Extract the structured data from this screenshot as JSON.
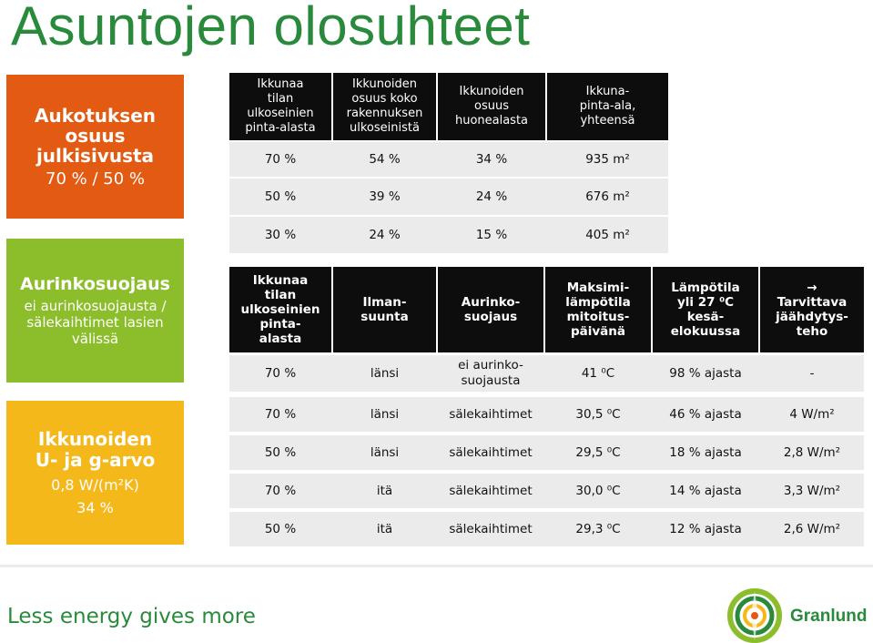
{
  "title": "Asuntojen olosuhteet",
  "side": {
    "orange": {
      "line1": "Aukotuksen",
      "line2": "osuus",
      "line3": "julkisivusta",
      "sub": "70 % / 50 %"
    },
    "green": {
      "heading": "Aurinkosuojaus",
      "line1": "ei aurinkosuojausta /",
      "line2": "sälekaihtimet lasien",
      "line3": "välissä"
    },
    "yellow": {
      "line1": "Ikkunoiden",
      "line2": "U- ja g-arvo",
      "sub1": "0,8 W/(m²K)",
      "sub2": "34 %"
    }
  },
  "table1": {
    "headers": [
      [
        "Ikkunaa",
        "tilan",
        "ulkoseinien",
        "pinta-alasta"
      ],
      [
        "Ikkunoiden",
        "osuus koko",
        "rakennuksen",
        "ulkoseinistä"
      ],
      [
        "Ikkunoiden",
        "osuus",
        "huonealasta"
      ],
      [
        "Ikkuna-",
        "pinta-ala,",
        "yhteensä"
      ]
    ],
    "rows": [
      [
        "70 %",
        "54 %",
        "34 %",
        "935 m²"
      ],
      [
        "50 %",
        "39 %",
        "24 %",
        "676 m²"
      ],
      [
        "30 %",
        "24 %",
        "15 %",
        "405 m²"
      ]
    ]
  },
  "table2": {
    "headers": [
      [
        "Ikkunaa",
        "tilan",
        "ulkoseinien",
        "pinta-",
        "alasta"
      ],
      [
        "Ilman-",
        "suunta"
      ],
      [
        "Aurinko-",
        "suojaus"
      ],
      [
        "Maksimi-",
        "lämpötila",
        "mitoitus-",
        "päivänä"
      ],
      [
        "Lämpötila",
        "yli 27 ⁰C",
        "kesä-",
        "elokuussa"
      ],
      [
        "→",
        "Tarvittava",
        "jäähdytys-",
        "teho"
      ]
    ],
    "rows": [
      [
        "70 %",
        "länsi",
        "ei aurinko-\nsuojausta",
        "41 ⁰C",
        "98 % ajasta",
        "-"
      ],
      [
        "70 %",
        "länsi",
        "sälekaihtimet",
        "30,5 ⁰C",
        "46 % ajasta",
        "4 W/m²"
      ],
      [
        "50 %",
        "länsi",
        "sälekaihtimet",
        "29,5 ⁰C",
        "18 % ajasta",
        "2,8 W/m²"
      ],
      [
        "70 %",
        "itä",
        "sälekaihtimet",
        "30,0 ⁰C",
        "14 % ajasta",
        "3,3 W/m²"
      ],
      [
        "50 %",
        "itä",
        "sälekaihtimet",
        "29,3 ⁰C",
        "12 % ajasta",
        "2,6 W/m²"
      ]
    ]
  },
  "footer": {
    "slogan": "Less energy gives more",
    "brand": "Granlund"
  },
  "colors": {
    "green": "#2a8a3c",
    "orange": "#e35a12",
    "lime": "#8cbd2b",
    "yellow": "#f4b81a",
    "header": "#0d0d0d",
    "row": "#ebebeb"
  }
}
